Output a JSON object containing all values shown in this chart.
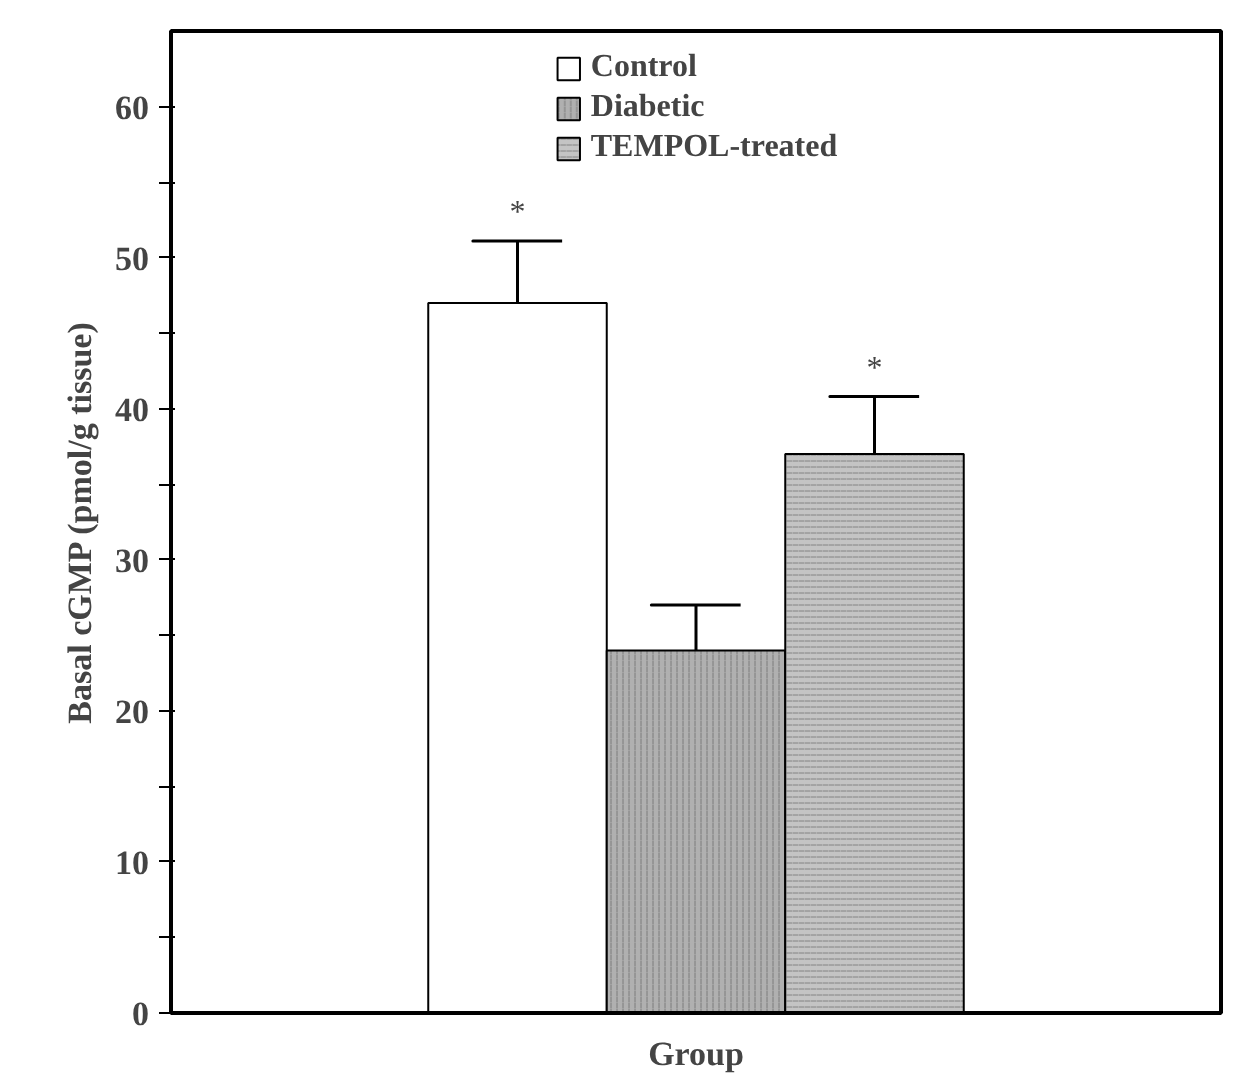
{
  "chart_data": {
    "type": "bar",
    "xlabel": "Group",
    "ylabel": "Basal cGMP (pmol/g tissue)",
    "categories": [
      null
    ],
    "series": [
      {
        "name": "Control",
        "color": "#ffffff",
        "values": [
          47
        ],
        "errors": [
          4.1
        ],
        "value_labels": [
          "*"
        ]
      },
      {
        "name": "Diabetic",
        "color": "#b0b0b0",
        "values": [
          24
        ],
        "errors": [
          3
        ]
      },
      {
        "name": "TEMPOL-treated",
        "color": "#c4c4c4",
        "values": [
          37
        ],
        "errors": [
          3.8
        ],
        "value_labels": [
          "*"
        ]
      }
    ],
    "ylim": [
      0,
      65
    ],
    "yticks": [
      0,
      {
        "value": 5,
        "label": null
      },
      10,
      {
        "value": 15,
        "label": null
      },
      20,
      {
        "value": 25,
        "label": null
      },
      30,
      {
        "value": 35,
        "label": null
      },
      40,
      {
        "value": 45,
        "label": null
      },
      50,
      {
        "value": 55,
        "label": null
      },
      60
    ],
    "grid": false,
    "legend": "top",
    "tick_labels": "y"
  }
}
